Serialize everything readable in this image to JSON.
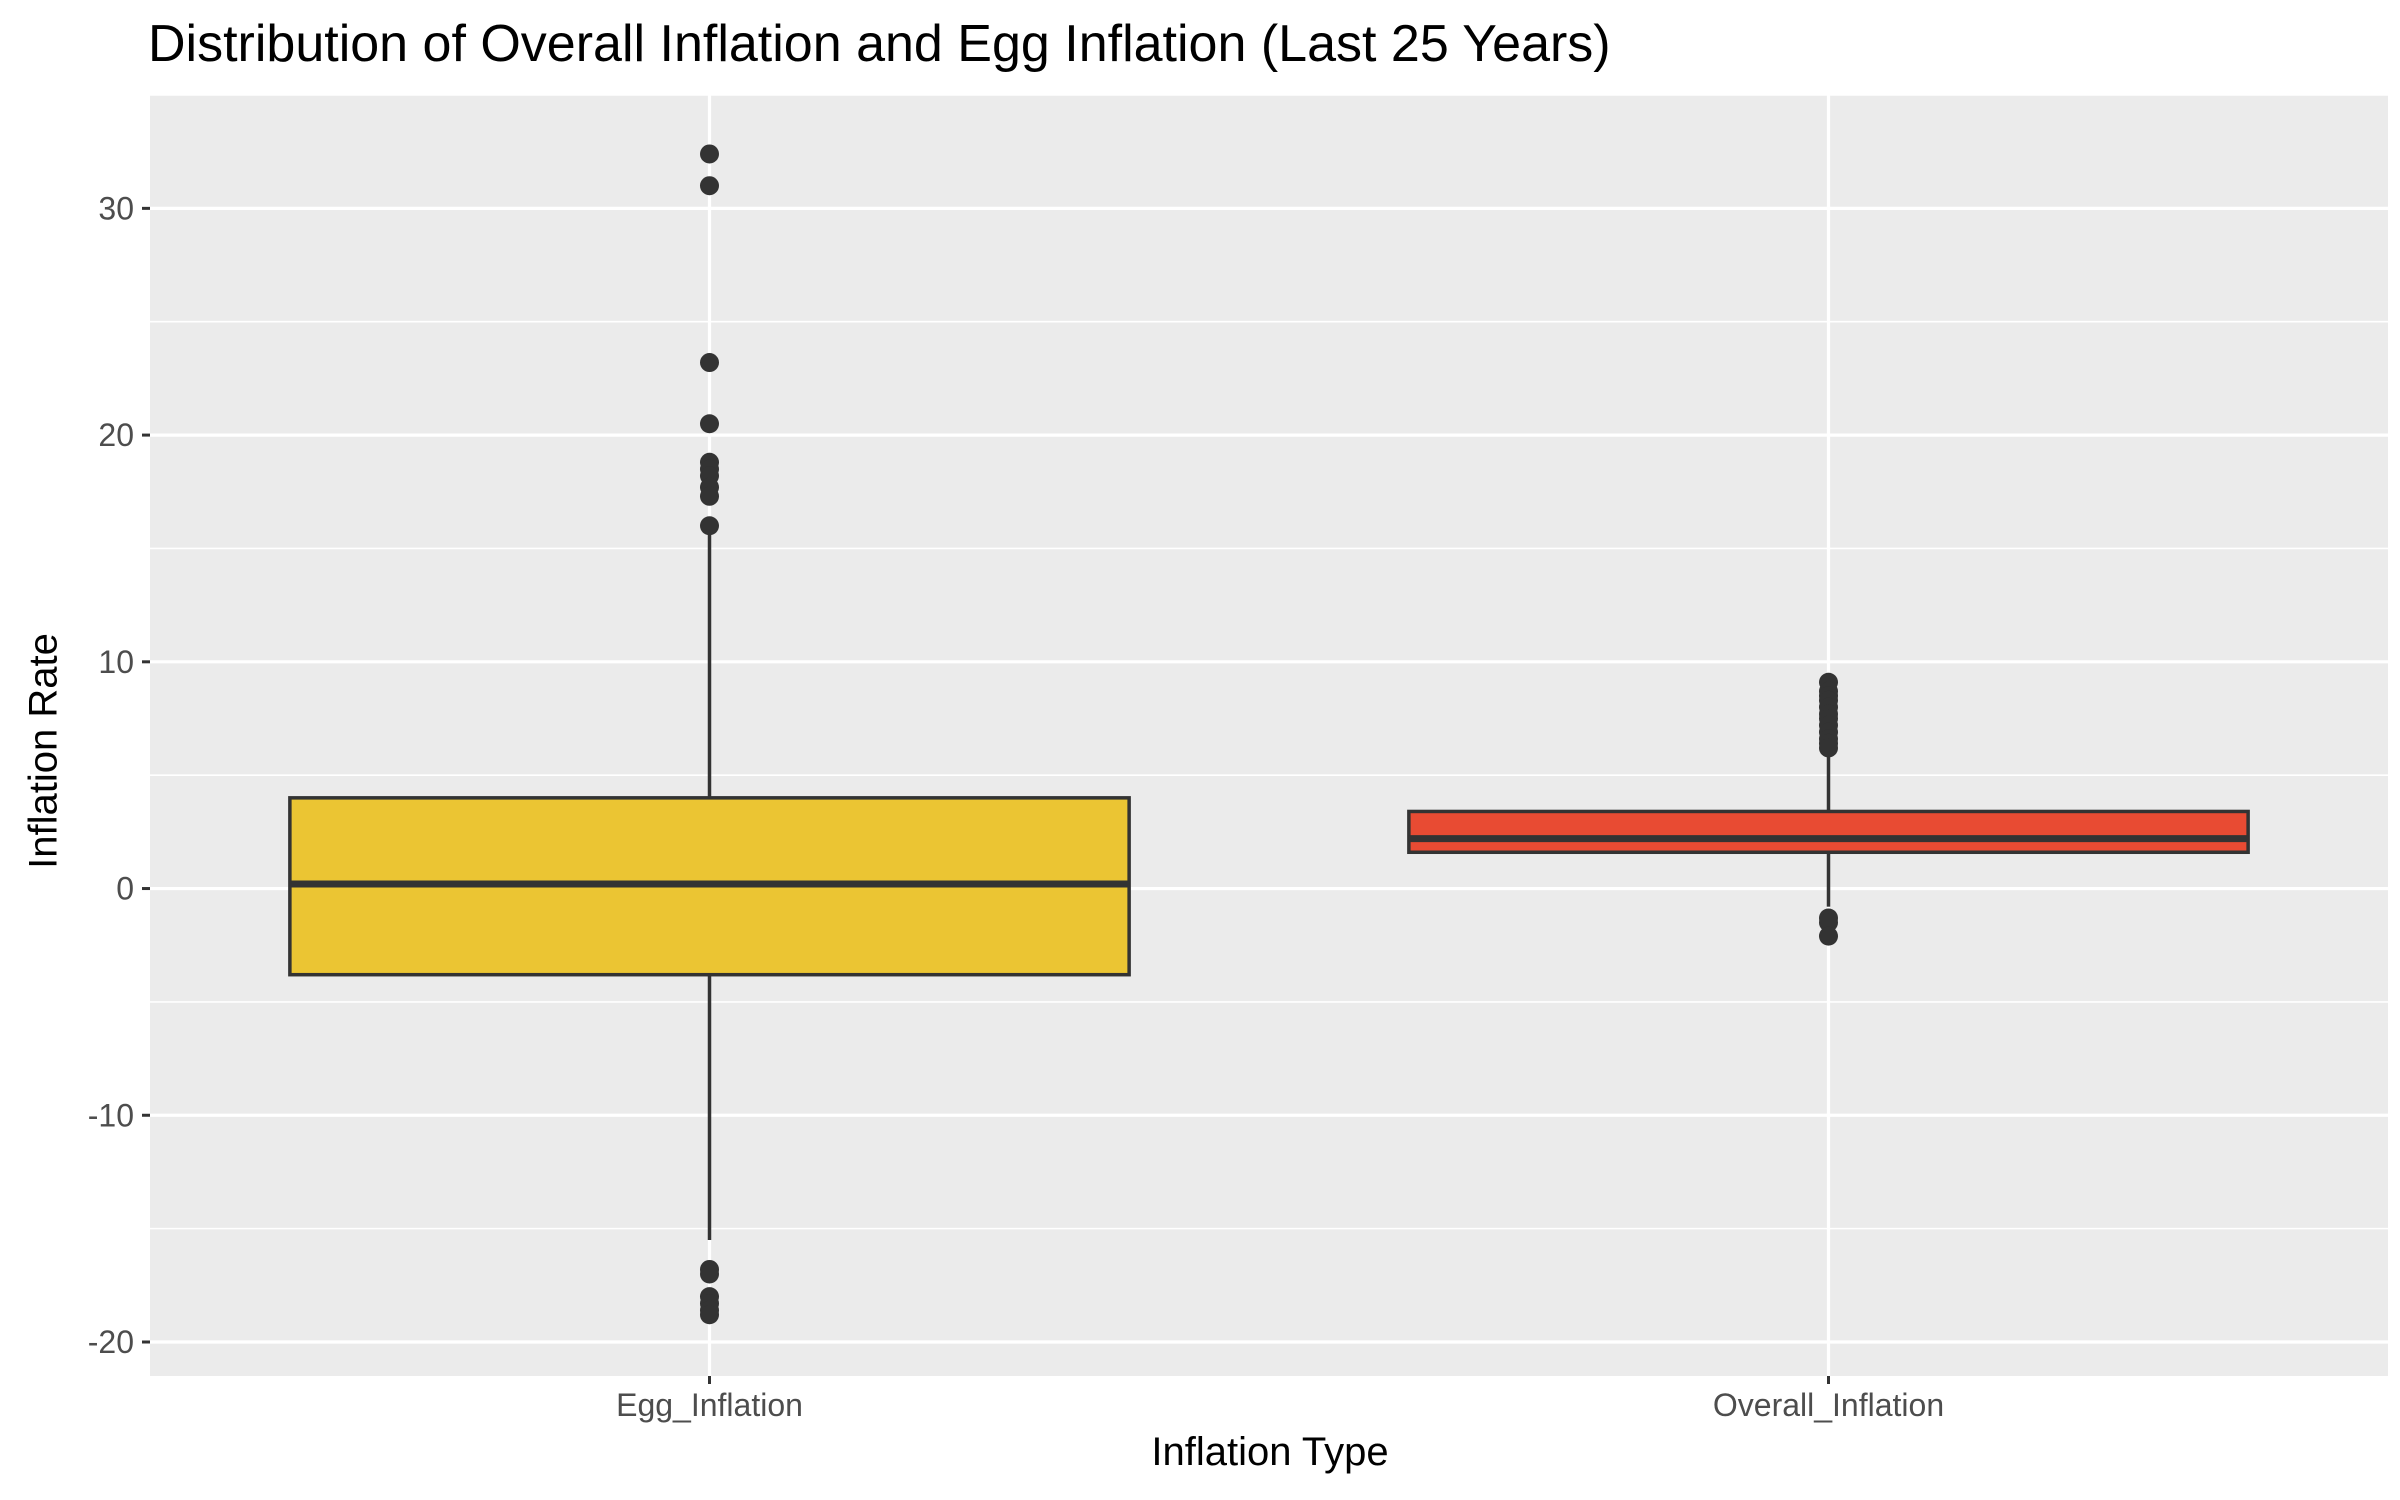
{
  "chart_data": {
    "type": "boxplot",
    "title": "Distribution of Overall Inflation and Egg Inflation (Last 25 Years)",
    "xlabel": "Inflation Type",
    "ylabel": "Inflation Rate",
    "ylim": [
      -21.5,
      35
    ],
    "yticks": [
      -20,
      -10,
      0,
      10,
      20,
      30
    ],
    "grid": true,
    "legend": "none",
    "panel_background": "#EBEBEB",
    "grid_color": "#FFFFFF",
    "categories": [
      "Egg_Inflation",
      "Overall_Inflation"
    ],
    "boxes": [
      {
        "category": "Egg_Inflation",
        "fill": "#EBC533",
        "q1": -3.8,
        "median": 0.2,
        "q3": 4.0,
        "whisker_low": -15.5,
        "whisker_high": 16.0,
        "outliers": [
          32.4,
          31.0,
          23.2,
          20.5,
          18.8,
          18.5,
          18.2,
          17.7,
          17.3,
          16.0,
          -16.8,
          -17.0,
          -18.0,
          -18.3,
          -18.6,
          -18.8
        ]
      },
      {
        "category": "Overall_Inflation",
        "fill": "#E84B33",
        "q1": 1.6,
        "median": 2.2,
        "q3": 3.4,
        "whisker_low": -0.8,
        "whisker_high": 5.9,
        "outliers": [
          9.1,
          8.7,
          8.5,
          8.3,
          8.0,
          7.7,
          7.5,
          7.2,
          6.9,
          6.6,
          6.4,
          6.2,
          -1.3,
          -1.5,
          -2.1
        ]
      }
    ]
  }
}
